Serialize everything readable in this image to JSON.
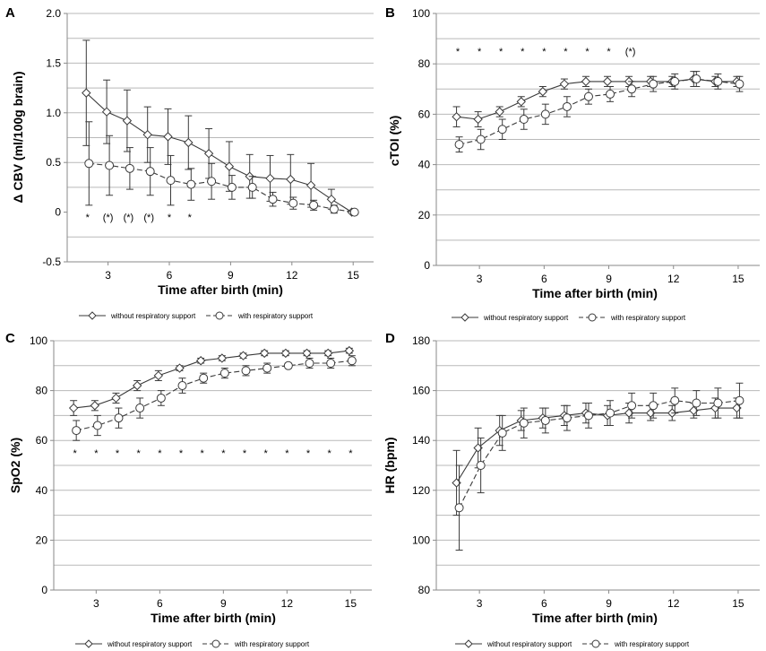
{
  "figure": {
    "legend": {
      "without_label": "without respiratory support",
      "with_label": "with respiratory support"
    },
    "colors": {
      "line": "#3a3a3a",
      "grid": "#b9b9b9",
      "axis": "#8a8a8a",
      "text": "#000000",
      "marker_fill": "#ffffff"
    }
  },
  "chart_data": [
    {
      "panel_letter": "A",
      "type": "line",
      "title": "",
      "xlabel": "Time after birth (min)",
      "ylabel": "Δ CBV (ml/100g brain)",
      "xlim": [
        1,
        16
      ],
      "ylim": [
        -0.5,
        2.0
      ],
      "xticks": [
        3,
        6,
        9,
        12,
        15
      ],
      "xtick_labels": [
        "3",
        "6",
        "9",
        "12",
        "15"
      ],
      "yticks": [
        -0.5,
        0,
        0.5,
        1.0,
        1.5,
        2.0
      ],
      "ytick_labels": [
        "-0.5",
        "0",
        "0.5",
        "1.0",
        "1.5",
        "2.0"
      ],
      "gridlines": [
        -0.25,
        0.25,
        0.5,
        0.75,
        1.0,
        1.25,
        1.5,
        1.75,
        2.0
      ],
      "series": [
        {
          "name": "without respiratory support",
          "marker": "diamond",
          "dash": "solid",
          "x": [
            2,
            3,
            4,
            5,
            6,
            7,
            8,
            9,
            10,
            11,
            12,
            13,
            14,
            15
          ],
          "y": [
            1.2,
            1.01,
            0.92,
            0.78,
            0.76,
            0.7,
            0.59,
            0.46,
            0.36,
            0.34,
            0.33,
            0.27,
            0.13,
            0.0
          ],
          "err": [
            0.53,
            0.32,
            0.31,
            0.28,
            0.28,
            0.27,
            0.25,
            0.25,
            0.22,
            0.23,
            0.25,
            0.22,
            0.1,
            0.0
          ]
        },
        {
          "name": "with respiratory support",
          "marker": "circle",
          "dash": "dashed",
          "x": [
            2,
            3,
            4,
            5,
            6,
            7,
            8,
            9,
            10,
            11,
            12,
            13,
            14,
            15
          ],
          "y": [
            0.49,
            0.47,
            0.44,
            0.41,
            0.32,
            0.28,
            0.31,
            0.25,
            0.25,
            0.13,
            0.09,
            0.07,
            0.03,
            0.0
          ],
          "err": [
            0.42,
            0.3,
            0.21,
            0.24,
            0.25,
            0.16,
            0.18,
            0.12,
            0.11,
            0.07,
            0.06,
            0.05,
            0.04,
            0.0
          ]
        }
      ],
      "significance": {
        "x": [
          2,
          3,
          4,
          5,
          6,
          7
        ],
        "labels": [
          "*",
          "(*)",
          "(*)",
          "(*)",
          "*",
          "*"
        ],
        "y": -0.05
      }
    },
    {
      "panel_letter": "B",
      "type": "line",
      "title": "",
      "xlabel": "Time after birth (min)",
      "ylabel": "cTOI (%)",
      "xlim": [
        1,
        16
      ],
      "ylim": [
        0,
        100
      ],
      "xticks": [
        3,
        6,
        9,
        12,
        15
      ],
      "xtick_labels": [
        "3",
        "6",
        "9",
        "12",
        "15"
      ],
      "yticks": [
        0,
        20,
        40,
        60,
        80,
        100
      ],
      "ytick_labels": [
        "0",
        "20",
        "40",
        "60",
        "80",
        "100"
      ],
      "gridlines": [
        10,
        20,
        30,
        40,
        50,
        60,
        70,
        80,
        90,
        100
      ],
      "series": [
        {
          "name": "without respiratory support",
          "marker": "diamond",
          "dash": "solid",
          "x": [
            2,
            3,
            4,
            5,
            6,
            7,
            8,
            9,
            10,
            11,
            12,
            13,
            14,
            15
          ],
          "y": [
            59,
            58,
            61,
            65,
            69,
            72,
            73,
            73,
            73,
            73,
            73,
            74,
            73,
            73
          ],
          "err": [
            4,
            3,
            2,
            2,
            2,
            2,
            2,
            2,
            2,
            2,
            2,
            3,
            2,
            2
          ]
        },
        {
          "name": "with respiratory support",
          "marker": "circle",
          "dash": "dashed",
          "x": [
            2,
            3,
            4,
            5,
            6,
            7,
            8,
            9,
            10,
            11,
            12,
            13,
            14,
            15
          ],
          "y": [
            48,
            50,
            54,
            58,
            60,
            63,
            67,
            68,
            70,
            72,
            73,
            74,
            73,
            72
          ],
          "err": [
            3,
            4,
            4,
            4,
            4,
            4,
            3,
            3,
            3,
            3,
            3,
            3,
            3,
            3
          ]
        }
      ],
      "significance": {
        "x": [
          2,
          3,
          4,
          5,
          6,
          7,
          8,
          9,
          10
        ],
        "labels": [
          "*",
          "*",
          "*",
          "*",
          "*",
          "*",
          "*",
          "*",
          "(*)"
        ],
        "y": 85
      }
    },
    {
      "panel_letter": "C",
      "type": "line",
      "title": "",
      "xlabel": "Time after birth (min)",
      "ylabel": "SpO2 (%)",
      "xlim": [
        1,
        16
      ],
      "ylim": [
        0,
        100
      ],
      "xticks": [
        3,
        6,
        9,
        12,
        15
      ],
      "xtick_labels": [
        "3",
        "6",
        "9",
        "12",
        "15"
      ],
      "yticks": [
        0,
        20,
        40,
        60,
        80,
        100
      ],
      "ytick_labels": [
        "0",
        "20",
        "40",
        "60",
        "80",
        "100"
      ],
      "gridlines": [
        10,
        20,
        30,
        40,
        50,
        60,
        70,
        80,
        90,
        100
      ],
      "series": [
        {
          "name": "without respiratory support",
          "marker": "diamond",
          "dash": "solid",
          "x": [
            2,
            3,
            4,
            5,
            6,
            7,
            8,
            9,
            10,
            11,
            12,
            13,
            14,
            15
          ],
          "y": [
            73,
            74,
            77,
            82,
            86,
            89,
            92,
            93,
            94,
            95,
            95,
            95,
            95,
            96
          ],
          "err": [
            3,
            2,
            2,
            2,
            2,
            1,
            1,
            1,
            1,
            1,
            1,
            1,
            1,
            1
          ]
        },
        {
          "name": "with respiratory support",
          "marker": "circle",
          "dash": "dashed",
          "x": [
            2,
            3,
            4,
            5,
            6,
            7,
            8,
            9,
            10,
            11,
            12,
            13,
            14,
            15
          ],
          "y": [
            64,
            66,
            69,
            73,
            77,
            82,
            85,
            87,
            88,
            89,
            90,
            91,
            91,
            92
          ],
          "err": [
            4,
            4,
            4,
            4,
            3,
            3,
            2,
            2,
            2,
            2,
            1,
            2,
            2,
            2
          ]
        }
      ],
      "significance": {
        "x": [
          2,
          3,
          4,
          5,
          6,
          7,
          8,
          9,
          10,
          11,
          12,
          13,
          14,
          15
        ],
        "labels": [
          "*",
          "*",
          "*",
          "*",
          "*",
          "*",
          "*",
          "*",
          "*",
          "*",
          "*",
          "*",
          "*",
          "*"
        ],
        "y": 55
      }
    },
    {
      "panel_letter": "D",
      "type": "line",
      "title": "",
      "xlabel": "Time after birth (min)",
      "ylabel": "HR (bpm)",
      "xlim": [
        1,
        16
      ],
      "ylim": [
        80,
        180
      ],
      "xticks": [
        3,
        6,
        9,
        12,
        15
      ],
      "xtick_labels": [
        "3",
        "6",
        "9",
        "12",
        "15"
      ],
      "yticks": [
        80,
        100,
        120,
        140,
        160,
        180
      ],
      "ytick_labels": [
        "80",
        "100",
        "120",
        "140",
        "160",
        "180"
      ],
      "gridlines": [
        90,
        100,
        110,
        120,
        130,
        140,
        150,
        160,
        170,
        180
      ],
      "series": [
        {
          "name": "without respiratory support",
          "marker": "diamond",
          "dash": "solid",
          "x": [
            2,
            3,
            4,
            5,
            6,
            7,
            8,
            9,
            10,
            11,
            12,
            13,
            14,
            15
          ],
          "y": [
            123,
            137,
            144,
            148,
            149,
            150,
            151,
            150,
            151,
            151,
            151,
            152,
            153,
            153
          ],
          "err": [
            13,
            8,
            6,
            4,
            4,
            4,
            4,
            4,
            4,
            3,
            3,
            3,
            4,
            4
          ]
        },
        {
          "name": "with respiratory support",
          "marker": "circle",
          "dash": "dashed",
          "x": [
            2,
            3,
            4,
            5,
            6,
            7,
            8,
            9,
            10,
            11,
            12,
            13,
            14,
            15
          ],
          "y": [
            113,
            130,
            143,
            147,
            148,
            149,
            150,
            151,
            154,
            154,
            156,
            155,
            155,
            156
          ],
          "err": [
            17,
            11,
            7,
            6,
            5,
            5,
            5,
            5,
            5,
            5,
            5,
            5,
            6,
            7
          ]
        }
      ],
      "significance": null
    }
  ]
}
